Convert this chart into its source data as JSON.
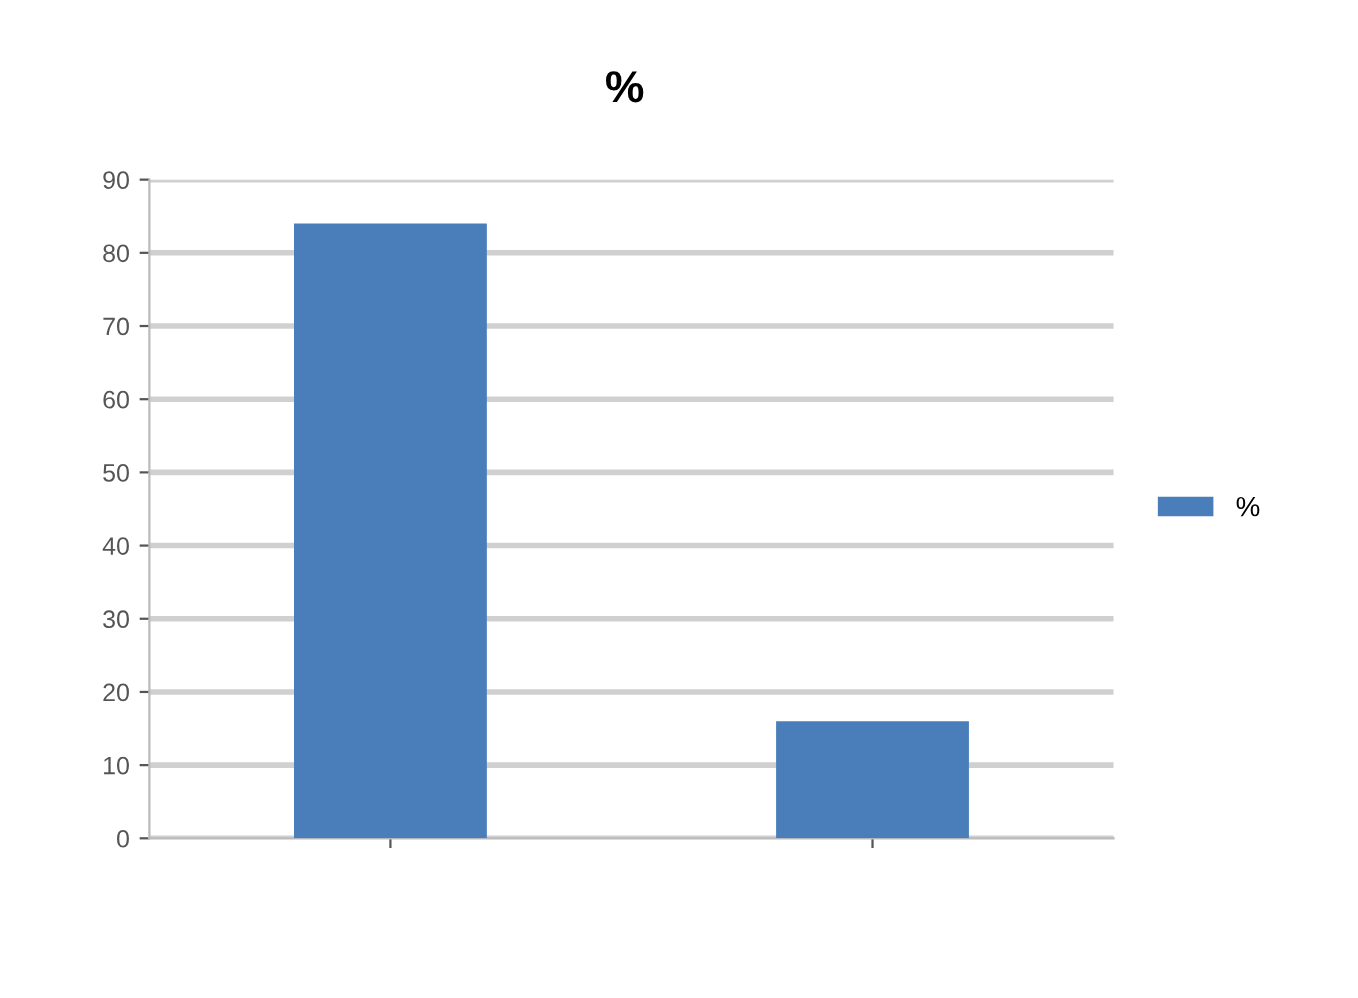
{
  "chart_data": {
    "type": "bar",
    "title": "%",
    "categories": [
      null,
      null
    ],
    "series": [
      {
        "name": "%",
        "color": "#4a7ebb",
        "values": [
          84,
          16
        ]
      }
    ],
    "ylim": [
      0,
      90
    ],
    "yticks": [
      0,
      10,
      20,
      30,
      40,
      50,
      60,
      70,
      80,
      90
    ],
    "grid": "y",
    "legend": "right"
  }
}
